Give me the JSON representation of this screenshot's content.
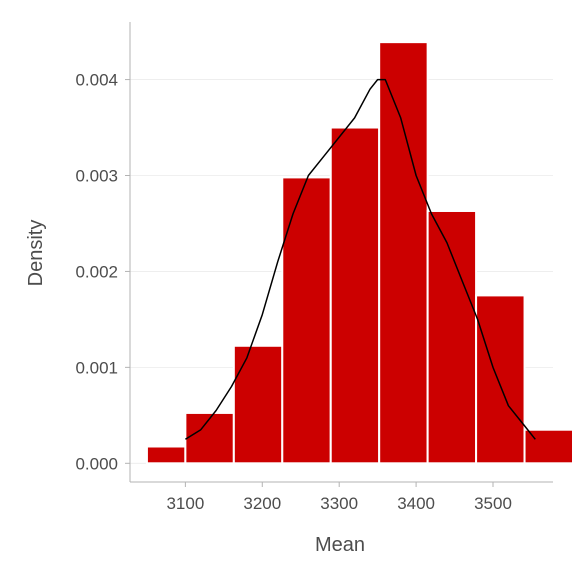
{
  "chart_data": {
    "type": "histogram",
    "xlabel": "Mean",
    "ylabel": "Density",
    "xlim": [
      3028,
      3578
    ],
    "ylim": [
      -0.000195,
      0.0046
    ],
    "x_ticks": [
      3100,
      3200,
      3300,
      3400,
      3500
    ],
    "x_tick_labels": [
      "3100",
      "3200",
      "3300",
      "3400",
      "3500"
    ],
    "y_ticks": [
      0.0,
      0.001,
      0.002,
      0.003,
      0.004
    ],
    "y_tick_labels": [
      "0.000",
      "0.001",
      "0.002",
      "0.003",
      "0.004"
    ],
    "grid": "horizontal",
    "bar_color": "#cc0000",
    "bar_edge_color": "#ffffff",
    "density_color": "#000000",
    "bins": [
      {
        "x0": 3050,
        "x1": 3100,
        "density": 0.000175
      },
      {
        "x0": 3100,
        "x1": 3163,
        "density": 0.000525
      },
      {
        "x0": 3163,
        "x1": 3226,
        "density": 0.001225
      },
      {
        "x0": 3226,
        "x1": 3289,
        "density": 0.00298
      },
      {
        "x0": 3289,
        "x1": 3352,
        "density": 0.0035
      },
      {
        "x0": 3352,
        "x1": 3415,
        "density": 0.00439
      },
      {
        "x0": 3415,
        "x1": 3478,
        "density": 0.00263
      },
      {
        "x0": 3478,
        "x1": 3541,
        "density": 0.00175
      },
      {
        "x0": 3541,
        "x1": 3604,
        "density": 0.00035
      }
    ],
    "density_curve": {
      "x": [
        3100,
        3120,
        3140,
        3160,
        3180,
        3200,
        3220,
        3240,
        3260,
        3280,
        3300,
        3320,
        3340,
        3350,
        3360,
        3380,
        3400,
        3420,
        3440,
        3460,
        3480,
        3500,
        3520,
        3540,
        3555
      ],
      "y": [
        0.00025,
        0.00035,
        0.00055,
        0.0008,
        0.0011,
        0.00155,
        0.0021,
        0.0026,
        0.003,
        0.0032,
        0.0034,
        0.0036,
        0.0039,
        0.004,
        0.004,
        0.0036,
        0.003,
        0.0026,
        0.0023,
        0.0019,
        0.0015,
        0.001,
        0.0006,
        0.0004,
        0.00025
      ]
    }
  }
}
